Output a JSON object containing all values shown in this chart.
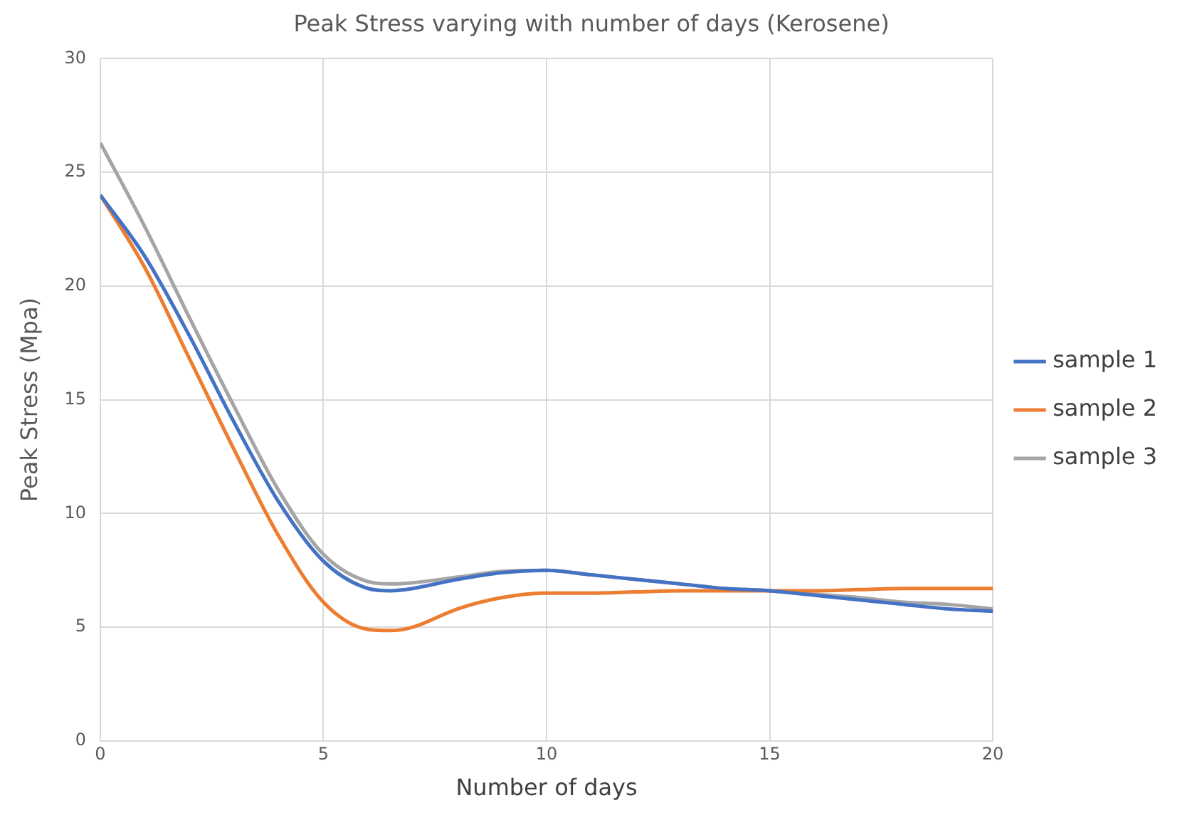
{
  "chart_data": {
    "type": "line",
    "title": "Peak Stress varying with number of days (Kerosene)",
    "xlabel": "Number of days",
    "ylabel": "Peak Stress (Mpa)",
    "x": [
      0,
      1,
      2,
      3,
      4,
      5,
      6,
      6.5,
      7,
      8,
      9,
      10,
      11,
      12,
      13,
      14,
      15,
      16,
      17,
      18,
      19,
      20
    ],
    "series": [
      {
        "name": "sample 1",
        "color": "#4472c4",
        "values": [
          24,
          21.3,
          17.8,
          14.0,
          10.5,
          7.9,
          6.7,
          6.6,
          6.7,
          7.1,
          7.4,
          7.5,
          7.3,
          7.1,
          6.9,
          6.7,
          6.6,
          6.4,
          6.2,
          6.0,
          5.8,
          5.7
        ]
      },
      {
        "name": "sample 2",
        "color": "#ed7d31",
        "values": [
          24,
          20.8,
          16.8,
          12.8,
          9.0,
          6.1,
          4.9,
          4.85,
          5.0,
          5.8,
          6.3,
          6.5,
          6.5,
          6.55,
          6.6,
          6.6,
          6.6,
          6.6,
          6.65,
          6.7,
          6.7,
          6.7
        ]
      },
      {
        "name": "sample 3",
        "color": "#a5a5a5",
        "values": [
          26.3,
          22.6,
          18.6,
          14.7,
          11.0,
          8.2,
          7.0,
          6.9,
          6.95,
          7.2,
          7.45,
          7.5,
          7.3,
          7.1,
          6.9,
          6.7,
          6.6,
          6.45,
          6.3,
          6.1,
          6.0,
          5.8
        ]
      }
    ],
    "xlim": [
      0,
      20
    ],
    "xticks": [
      0,
      5,
      10,
      15,
      20
    ],
    "ylim": [
      0,
      30
    ],
    "yticks": [
      0,
      5,
      10,
      15,
      20,
      25,
      30
    ],
    "grid": true,
    "legend": "right",
    "marker": "none",
    "line_style": "solid"
  }
}
